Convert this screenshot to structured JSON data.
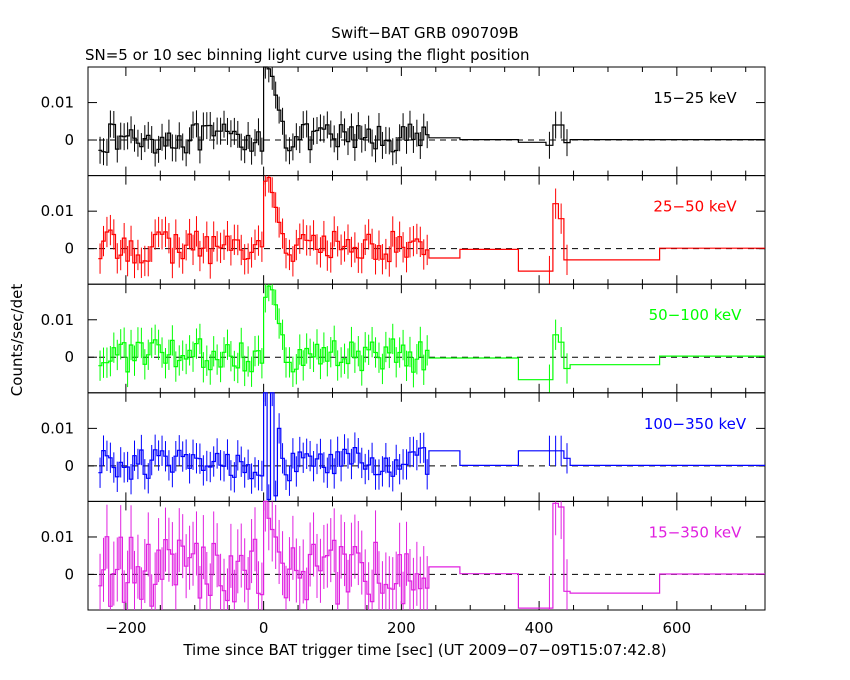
{
  "chart_data": {
    "type": "line",
    "title": "Swift−BAT GRB 090709B",
    "subtitle": "SN=5 or 10 sec binning light curve using the flight position",
    "xlabel": "Time since BAT trigger time [sec] (UT 2009−07−09T15:07:42.8)",
    "ylabel": "Counts/sec/det",
    "xlim": [
      -255,
      728
    ],
    "ylim": [
      -0.0095,
      0.0195
    ],
    "x_ticks": [
      -200,
      0,
      200,
      400,
      600
    ],
    "x_tick_labels": [
      "−200",
      "0",
      "200",
      "400",
      "600"
    ],
    "y_ticks": [
      0,
      0.01
    ],
    "y_tick_labels": [
      "0",
      "0.01"
    ],
    "series": [
      {
        "name": "15−25 keV",
        "color": "#000000",
        "amp": 0.004,
        "peak": [
          0.02,
          0.019,
          0.017,
          0.012,
          0.008,
          0.005
        ],
        "bump": [
          0.004,
          0.004
        ],
        "tail": [
          0.0006,
          0.0001,
          -0.0006,
          -0.0014,
          0.0001,
          0.0001
        ]
      },
      {
        "name": "25−50 keV",
        "color": "#ff0000",
        "amp": 0.0045,
        "peak": [
          0.018,
          0.019,
          0.015,
          0.011,
          0.007,
          0.004
        ],
        "bump": [
          0.012,
          0.008
        ],
        "tail": [
          -0.0025,
          -0.0002,
          -0.006,
          -0.006,
          -0.003,
          0.0001
        ]
      },
      {
        "name": "50−100 keV",
        "color": "#00ff00",
        "amp": 0.0045,
        "peak": [
          0.016,
          0.019,
          0.018,
          0.014,
          0.009,
          0.006
        ],
        "bump": [
          0.006,
          0.004
        ],
        "tail": [
          -0.0002,
          -0.0002,
          -0.006,
          -0.006,
          -0.002,
          0.0003
        ]
      },
      {
        "name": "100−350 keV",
        "color": "#0000ff",
        "amp": 0.0045,
        "peak": [
          0.02,
          -0.009,
          0.02,
          -0.008,
          0.01,
          0.002
        ],
        "bump": [
          0.004,
          0.004
        ],
        "tail": [
          0.004,
          0.0001,
          0.004,
          0.004,
          0.0001,
          0.0001
        ]
      },
      {
        "name": "15−350 keV",
        "color": "#e020e0",
        "amp": 0.0095,
        "peak": [
          0.02,
          0.015,
          0.012,
          0.01,
          0.006,
          0.003
        ],
        "bump": [
          0.019,
          0.018
        ],
        "tail": [
          0.002,
          0.0002,
          -0.009,
          -0.009,
          -0.005,
          0.0001
        ]
      }
    ]
  }
}
